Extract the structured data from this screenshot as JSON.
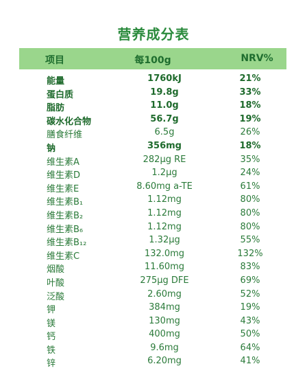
{
  "title": "营养成分表",
  "header": {
    "item": "项目",
    "per": "每100g",
    "nrv": "NRV%"
  },
  "rows": [
    {
      "name": "能量",
      "value": "1760kJ",
      "nrv": "21%",
      "bold": true
    },
    {
      "name": "蛋白质",
      "value": "19.8g",
      "nrv": "33%",
      "bold": true
    },
    {
      "name": "脂肪",
      "value": "11.0g",
      "nrv": "18%",
      "bold": true
    },
    {
      "name": "碳水化合物",
      "value": "56.7g",
      "nrv": "19%",
      "bold": true
    },
    {
      "name": "膳食纤维",
      "value": "6.5g",
      "nrv": "26%",
      "bold": false
    },
    {
      "name": "钠",
      "value": "356mg",
      "nrv": "18%",
      "bold": true
    },
    {
      "name": "维生素A",
      "value": "282μg RE",
      "nrv": "35%",
      "bold": false
    },
    {
      "name": "维生素D",
      "value": "1.2μg",
      "nrv": "24%",
      "bold": false
    },
    {
      "name": "维生素E",
      "value": "8.60mg a-TE",
      "nrv": "61%",
      "bold": false
    },
    {
      "name": "维生素B₁",
      "value": "1.12mg",
      "nrv": "80%",
      "bold": false
    },
    {
      "name": "维生素B₂",
      "value": "1.12mg",
      "nrv": "80%",
      "bold": false
    },
    {
      "name": "维生素B₆",
      "value": "1.12mg",
      "nrv": "80%",
      "bold": false
    },
    {
      "name": "维生素B₁₂",
      "value": "1.32μg",
      "nrv": "55%",
      "bold": false
    },
    {
      "name": "维生素C",
      "value": "132.0mg",
      "nrv": "132%",
      "bold": false
    },
    {
      "name": "烟酸",
      "value": "11.60mg",
      "nrv": "83%",
      "bold": false
    },
    {
      "name": "叶酸",
      "value": "275μg DFE",
      "nrv": "69%",
      "bold": false
    },
    {
      "name": "泛酸",
      "value": "2.60mg",
      "nrv": "52%",
      "bold": false
    },
    {
      "name": "钾",
      "value": "384mg",
      "nrv": "19%",
      "bold": false
    },
    {
      "name": "镁",
      "value": "130mg",
      "nrv": "43%",
      "bold": false
    },
    {
      "name": "钙",
      "value": "400mg",
      "nrv": "50%",
      "bold": false
    },
    {
      "name": "铁",
      "value": "9.6mg",
      "nrv": "64%",
      "bold": false
    },
    {
      "name": "锌",
      "value": "6.20mg",
      "nrv": "41%",
      "bold": false
    }
  ],
  "colors": {
    "title": "#2a8a3c",
    "header_bg": "#9ad68c",
    "text": "#1e6a2c"
  }
}
